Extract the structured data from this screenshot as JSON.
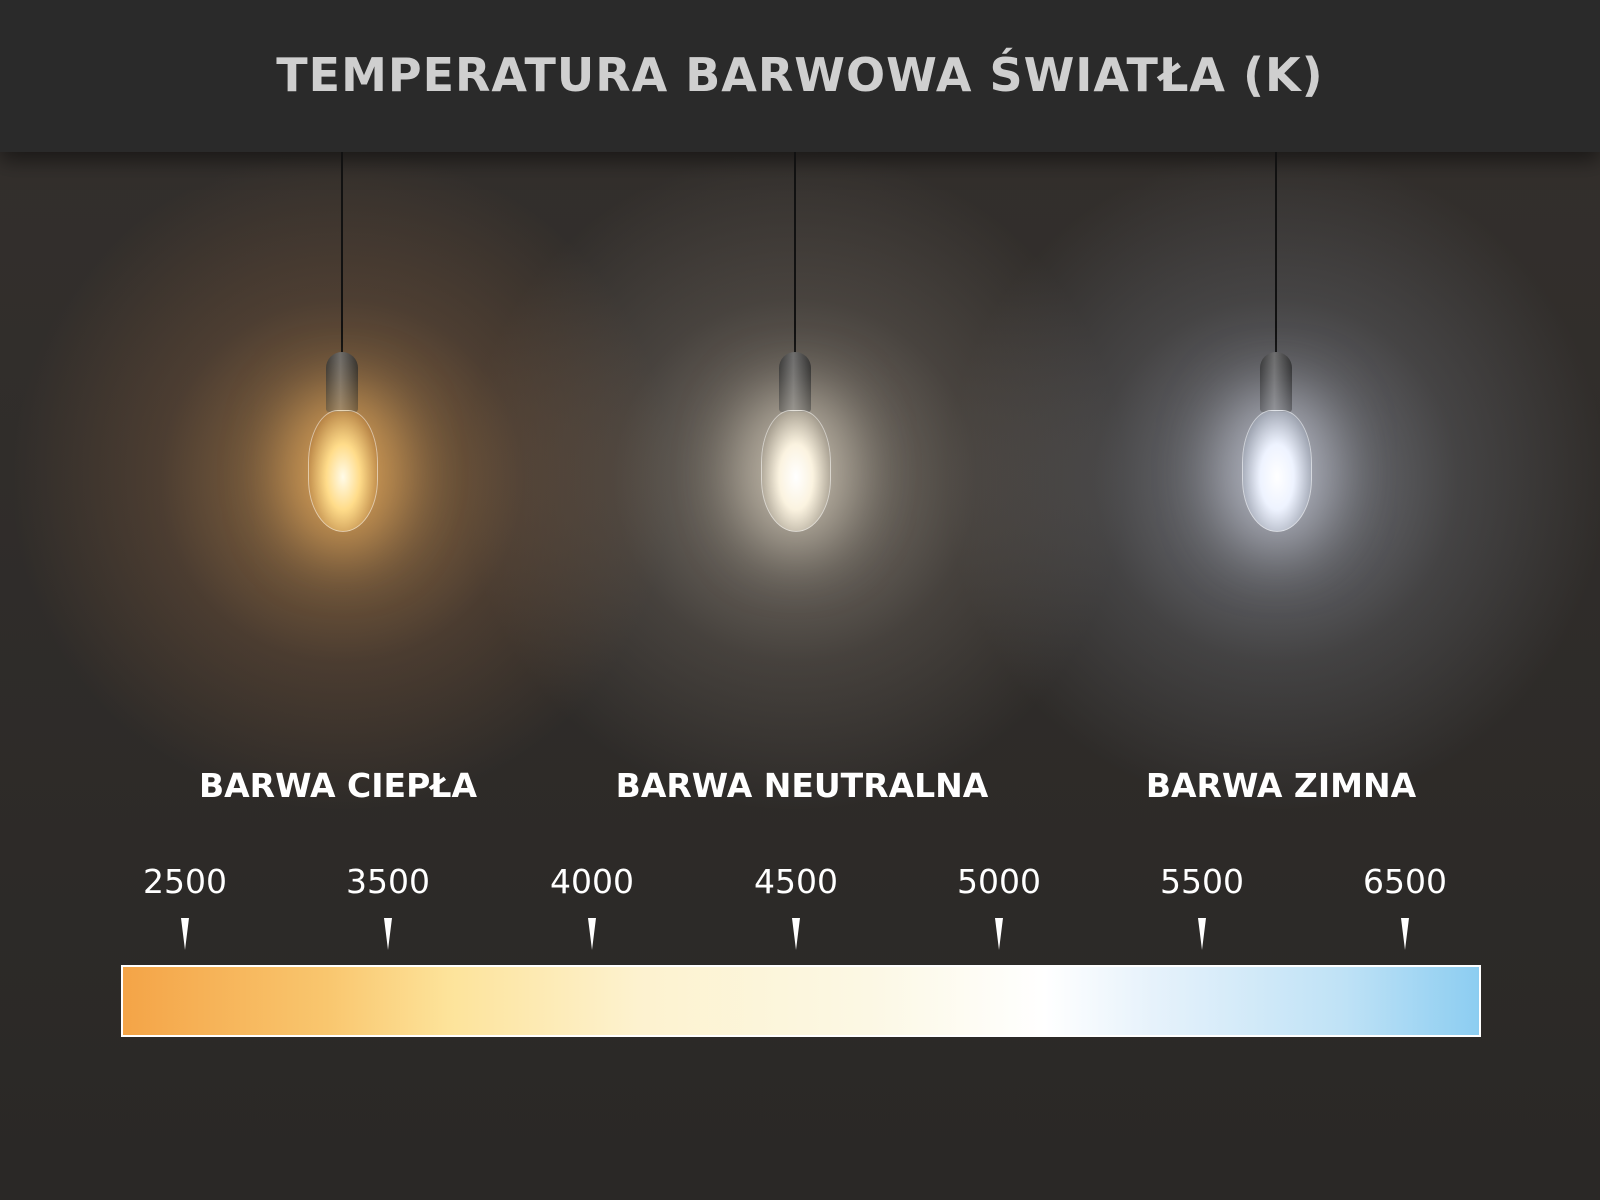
{
  "title": "TEMPERATURA BARWOWA ŚWIATŁA (K)",
  "bulbs": [
    {
      "label": "BARWA CIEPŁA",
      "glow_color": "#f7b868"
    },
    {
      "label": "BARWA NEUTRALNA",
      "glow_color": "#fff4dc"
    },
    {
      "label": "BARWA ZIMNA",
      "glow_color": "#e8f0ff"
    }
  ],
  "scale": {
    "ticks": [
      "2500",
      "3500",
      "4000",
      "4500",
      "5000",
      "5500",
      "6500"
    ],
    "gradient_start_color": "#f4a447",
    "gradient_mid_color": "#ffffff",
    "gradient_end_color": "#8ccdf1"
  }
}
